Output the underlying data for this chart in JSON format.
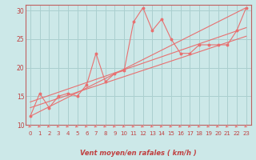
{
  "xlabel": "Vent moyen/en rafales ( km/h )",
  "bg_color": "#cce8e8",
  "grid_color": "#aacfcf",
  "line_color": "#e87070",
  "xlim": [
    -0.5,
    23.5
  ],
  "ylim": [
    10,
    31
  ],
  "yticks": [
    10,
    15,
    20,
    25,
    30
  ],
  "xticks": [
    0,
    1,
    2,
    3,
    4,
    5,
    6,
    7,
    8,
    9,
    10,
    11,
    12,
    13,
    14,
    15,
    16,
    17,
    18,
    19,
    20,
    21,
    22,
    23
  ],
  "data_x": [
    0,
    1,
    2,
    3,
    4,
    5,
    6,
    7,
    8,
    9,
    10,
    11,
    12,
    13,
    14,
    15,
    16,
    17,
    18,
    19,
    20,
    21,
    22,
    23
  ],
  "data_y": [
    11.5,
    15.5,
    13.0,
    15.0,
    15.5,
    15.0,
    17.0,
    22.5,
    17.5,
    19.0,
    19.5,
    28.0,
    30.5,
    26.5,
    28.5,
    25.0,
    22.5,
    22.5,
    24.0,
    24.0,
    24.0,
    24.0,
    26.5,
    30.5
  ],
  "trend1_x": [
    0,
    23
  ],
  "trend1_y": [
    11.5,
    30.5
  ],
  "trend2_x": [
    0,
    23
  ],
  "trend2_y": [
    14.0,
    27.0
  ],
  "trend3_x": [
    0,
    23
  ],
  "trend3_y": [
    13.0,
    25.5
  ]
}
